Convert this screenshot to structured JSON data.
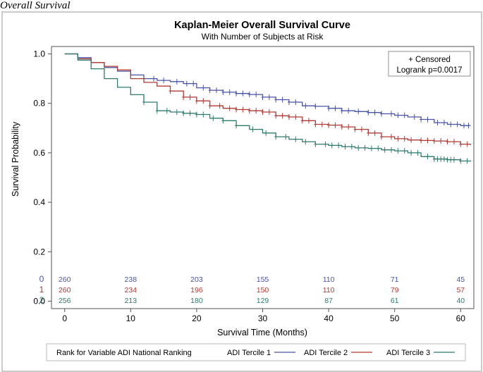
{
  "caption": "Overall Survival",
  "chart_data": {
    "type": "line",
    "subtype": "kaplan-meier",
    "title": "Kaplan-Meier Overall Survival Curve",
    "subtitle": "With Number of Subjects at Risk",
    "xlabel": "Survival Time (Months)",
    "ylabel": "Survival Probability",
    "xlim": [
      -2,
      62
    ],
    "ylim": [
      -0.03,
      1.03
    ],
    "xticks": [
      0,
      10,
      20,
      30,
      40,
      50,
      60
    ],
    "yticks": [
      0.0,
      0.2,
      0.4,
      0.6,
      0.8,
      1.0
    ],
    "ytick_labels": [
      "0.0",
      "0.2",
      "0.4",
      "0.6",
      "0.8",
      "1.0"
    ],
    "inset": {
      "censored_label": "+ Censored",
      "logrank": "Logrank p=0.0017"
    },
    "series": [
      {
        "name": "ADI Tercile 1",
        "code": "0",
        "color": "#4a54a6",
        "x": [
          0,
          2,
          4,
          6,
          8,
          10,
          12,
          14,
          16,
          18,
          20,
          22,
          24,
          26,
          28,
          30,
          32,
          34,
          36,
          38,
          40,
          42,
          44,
          46,
          48,
          50,
          52,
          54,
          56,
          58,
          60,
          61.5
        ],
        "y": [
          1.0,
          0.985,
          0.965,
          0.945,
          0.93,
          0.915,
          0.9,
          0.893,
          0.888,
          0.88,
          0.863,
          0.853,
          0.845,
          0.84,
          0.836,
          0.825,
          0.815,
          0.805,
          0.79,
          0.788,
          0.78,
          0.77,
          0.767,
          0.763,
          0.758,
          0.752,
          0.745,
          0.735,
          0.722,
          0.715,
          0.71,
          0.71
        ],
        "censored_x": [
          13.5,
          15,
          17,
          18.5,
          19.5,
          21,
          22,
          23,
          24,
          25,
          26,
          27,
          28,
          29,
          30,
          31,
          32,
          33,
          34,
          35,
          36.5,
          38,
          40,
          41,
          42,
          43,
          44.5,
          46,
          47,
          48,
          49.5,
          50.5,
          51.5,
          53,
          54,
          55,
          56.5,
          57.5,
          58.5,
          59.5,
          60.5,
          61.2
        ],
        "at_risk": [
          260,
          238,
          203,
          155,
          110,
          71,
          45
        ]
      },
      {
        "name": "ADI Tercile 2",
        "code": "1",
        "color": "#b23a35",
        "x": [
          0,
          2,
          4,
          6,
          8,
          10,
          12,
          14,
          16,
          18,
          20,
          22,
          24,
          26,
          28,
          30,
          32,
          34,
          36,
          38,
          40,
          42,
          44,
          46,
          48,
          50,
          52,
          54,
          56,
          58,
          60,
          61.5
        ],
        "y": [
          1.0,
          0.98,
          0.965,
          0.95,
          0.935,
          0.9,
          0.885,
          0.87,
          0.85,
          0.825,
          0.81,
          0.79,
          0.78,
          0.775,
          0.77,
          0.765,
          0.75,
          0.745,
          0.73,
          0.715,
          0.712,
          0.705,
          0.695,
          0.68,
          0.665,
          0.657,
          0.652,
          0.65,
          0.648,
          0.645,
          0.635,
          0.632
        ],
        "censored_x": [
          16,
          18,
          19,
          20,
          21,
          22,
          23.5,
          25,
          26,
          27,
          28,
          29,
          30,
          31,
          32,
          33,
          34,
          35,
          36,
          37,
          38,
          39,
          40,
          41,
          42,
          43,
          44,
          45,
          46,
          47,
          48,
          49.5,
          50.5,
          51.5,
          52.5,
          54,
          55,
          56,
          57,
          58,
          59,
          60,
          61
        ],
        "at_risk": [
          260,
          234,
          196,
          150,
          110,
          79,
          57
        ]
      },
      {
        "name": "ADI Tercile 3",
        "code": "2",
        "color": "#2e7b6f",
        "x": [
          0,
          2,
          4,
          6,
          8,
          10,
          12,
          14,
          16,
          18,
          20,
          22,
          24,
          26,
          28,
          30,
          32,
          34,
          36,
          38,
          40,
          42,
          44,
          46,
          48,
          50,
          52,
          54,
          56,
          58,
          60,
          61.5
        ],
        "y": [
          1.0,
          0.975,
          0.94,
          0.9,
          0.865,
          0.835,
          0.805,
          0.77,
          0.765,
          0.76,
          0.755,
          0.74,
          0.73,
          0.71,
          0.695,
          0.68,
          0.665,
          0.655,
          0.645,
          0.635,
          0.63,
          0.625,
          0.62,
          0.618,
          0.612,
          0.608,
          0.6,
          0.585,
          0.575,
          0.572,
          0.567,
          0.565
        ],
        "censored_x": [
          12,
          14,
          15.5,
          17,
          18,
          19,
          20,
          21,
          22.5,
          24,
          26,
          28.5,
          30.5,
          32,
          33.5,
          35,
          36.5,
          38,
          39.5,
          40.5,
          41.5,
          42.5,
          43.5,
          44.5,
          45.5,
          46.5,
          47.5,
          48.5,
          49.5,
          50.5,
          51.5,
          52.5,
          53.5,
          55,
          56,
          56.5,
          57,
          57.5,
          58,
          58.5,
          59,
          60,
          61
        ],
        "at_risk": [
          256,
          213,
          180,
          129,
          87,
          61,
          40
        ]
      }
    ],
    "legend": {
      "title": "Rank for Variable ADI National Ranking",
      "position": "bottom"
    }
  }
}
